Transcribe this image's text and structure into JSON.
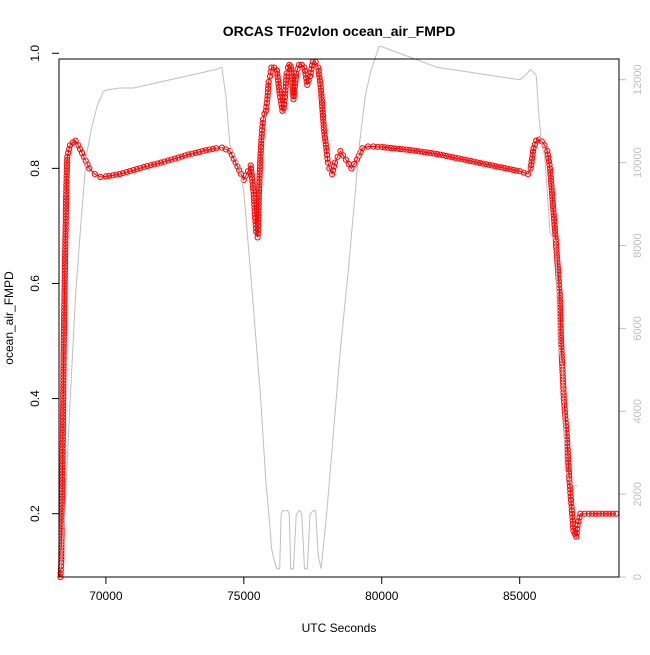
{
  "chart_data": {
    "type": "line",
    "title": "ORCAS TF02vlon ocean_air_FMPD",
    "xlabel": "UTC Seconds",
    "ylabel": "ocean_air_FMPD",
    "ylabel_right": "",
    "xlim": [
      68300,
      88600
    ],
    "ylim": [
      0.09,
      0.99
    ],
    "y2lim": [
      0,
      12500
    ],
    "x_ticks": [
      70000,
      75000,
      80000,
      85000
    ],
    "y_ticks": [
      0.2,
      0.4,
      0.6,
      0.8,
      1.0
    ],
    "y_tick_labels": [
      "0.2",
      "0.4",
      "0.6",
      "0.8",
      "1.0"
    ],
    "y2_ticks": [
      0,
      2000,
      4000,
      6000,
      8000,
      10000,
      12000
    ],
    "grid": false,
    "legend": "none",
    "colors": {
      "primary": "#ff0000",
      "secondary": "#bebebe"
    },
    "series": [
      {
        "axis": "left",
        "style": "line+open-circles",
        "color": "#ff0000",
        "x": [
          68350,
          68380,
          68410,
          68440,
          68470,
          68500,
          68530,
          68560,
          68600,
          68700,
          68800,
          68900,
          69000,
          69200,
          69400,
          69600,
          69800,
          70000,
          70500,
          71000,
          71500,
          72000,
          72500,
          73000,
          73500,
          74000,
          74200,
          74500,
          74700,
          74900,
          75000,
          75150,
          75250,
          75350,
          75400,
          75450,
          75500,
          75520,
          75550,
          75600,
          75650,
          75700,
          75750,
          75800,
          75850,
          75900,
          75950,
          76000,
          76100,
          76200,
          76300,
          76400,
          76450,
          76500,
          76550,
          76600,
          76650,
          76700,
          76750,
          76800,
          76900,
          77000,
          77100,
          77200,
          77300,
          77400,
          77500,
          77600,
          77700,
          77800,
          77900,
          78000,
          78050,
          78100,
          78200,
          78300,
          78400,
          78500,
          78700,
          78900,
          79100,
          79300,
          79500,
          79700,
          80000,
          81000,
          82000,
          83000,
          84000,
          85000,
          85300,
          85400,
          85500,
          85600,
          85700,
          85800,
          85900,
          86000,
          86100,
          86200,
          86300,
          86400,
          86450,
          86500,
          86550,
          86600,
          86650,
          86700,
          86750,
          86800,
          86850,
          86900,
          86950,
          87000,
          87050,
          87100,
          87200,
          87500,
          88000,
          88500
        ],
        "y": [
          0.09,
          0.115,
          0.21,
          0.34,
          0.49,
          0.585,
          0.67,
          0.755,
          0.82,
          0.84,
          0.845,
          0.848,
          0.84,
          0.82,
          0.8,
          0.79,
          0.785,
          0.786,
          0.79,
          0.797,
          0.804,
          0.81,
          0.817,
          0.824,
          0.83,
          0.835,
          0.836,
          0.83,
          0.81,
          0.79,
          0.78,
          0.795,
          0.805,
          0.76,
          0.72,
          0.69,
          0.68,
          0.7,
          0.76,
          0.82,
          0.86,
          0.885,
          0.895,
          0.9,
          0.92,
          0.95,
          0.96,
          0.975,
          0.975,
          0.97,
          0.93,
          0.9,
          0.905,
          0.93,
          0.965,
          0.975,
          0.98,
          0.977,
          0.96,
          0.92,
          0.965,
          0.98,
          0.98,
          0.975,
          0.945,
          0.96,
          0.985,
          0.985,
          0.975,
          0.935,
          0.87,
          0.83,
          0.81,
          0.8,
          0.79,
          0.81,
          0.82,
          0.83,
          0.815,
          0.8,
          0.815,
          0.835,
          0.838,
          0.838,
          0.837,
          0.832,
          0.825,
          0.815,
          0.805,
          0.795,
          0.79,
          0.8,
          0.835,
          0.848,
          0.85,
          0.847,
          0.84,
          0.83,
          0.8,
          0.74,
          0.68,
          0.615,
          0.58,
          0.5,
          0.45,
          0.4,
          0.37,
          0.34,
          0.3,
          0.26,
          0.23,
          0.2,
          0.17,
          0.165,
          0.16,
          0.18,
          0.2,
          0.2,
          0.2,
          0.2
        ]
      },
      {
        "axis": "right",
        "style": "line",
        "color": "#bebebe",
        "x": [
          68350,
          68500,
          68700,
          68900,
          69100,
          69300,
          69500,
          69700,
          69900,
          70000,
          70500,
          71000,
          72000,
          73000,
          74000,
          74200,
          74350,
          74500,
          74800,
          75000,
          75300,
          75600,
          75800,
          75950,
          76000,
          76100,
          76200,
          76300,
          76350,
          76400,
          76500,
          76600,
          76650,
          76700,
          76800,
          76900,
          77000,
          77050,
          77100,
          77200,
          77300,
          77400,
          77500,
          77600,
          77700,
          77800,
          78000,
          78500,
          78800,
          79000,
          79200,
          79400,
          79600,
          79800,
          79900,
          80000,
          81000,
          82000,
          83000,
          84000,
          85000,
          85200,
          85400,
          85600,
          85700,
          85800,
          85900,
          86000,
          86100,
          86200,
          86300,
          86400,
          86500,
          86550,
          86650,
          86750,
          86850,
          86950,
          87050,
          87100
        ],
        "y": [
          200,
          1400,
          4200,
          6800,
          8600,
          10200,
          10900,
          11400,
          11700,
          11750,
          11800,
          11800,
          11950,
          12100,
          12250,
          12300,
          11600,
          10400,
          10000,
          9300,
          6900,
          4400,
          2300,
          1200,
          700,
          400,
          200,
          200,
          1500,
          1600,
          1600,
          1600,
          1500,
          200,
          200,
          1500,
          1600,
          1600,
          1500,
          200,
          200,
          1500,
          1600,
          1600,
          500,
          200,
          1500,
          5500,
          7500,
          9000,
          10500,
          11600,
          12200,
          12600,
          12800,
          12800,
          12550,
          12300,
          12200,
          12100,
          12000,
          12100,
          12250,
          12100,
          11100,
          10400,
          10200,
          9300,
          8300,
          8200,
          8100,
          5600,
          5200,
          5100,
          2600,
          2400,
          2300,
          2200,
          2200,
          2200
        ]
      }
    ]
  }
}
